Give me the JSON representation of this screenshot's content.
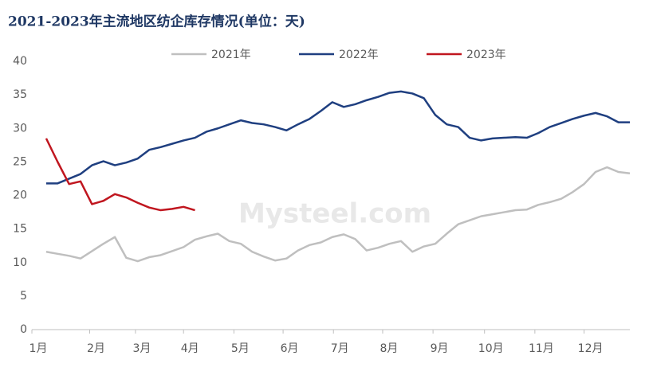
{
  "chart_data": {
    "type": "line",
    "title": "2021-2023年主流地区纺企库存情况(单位：天)",
    "watermark": "Mysteel.com",
    "x": [
      1,
      2,
      3,
      4,
      5,
      6,
      7,
      8,
      9,
      10,
      11,
      12,
      13,
      14,
      15,
      16,
      17,
      18,
      19,
      20,
      21,
      22,
      23,
      24,
      25,
      26,
      27,
      28,
      29,
      30,
      31,
      32,
      33,
      34,
      35,
      36,
      37,
      38,
      39,
      40,
      41,
      42,
      43,
      44,
      45,
      46,
      47,
      48,
      49,
      50,
      51,
      52
    ],
    "xlim": [
      -0.25,
      52
    ],
    "xticks": [
      {
        "value": -0.25,
        "label": "1月"
      },
      {
        "value": 4.8,
        "label": "2月"
      },
      {
        "value": 8.8,
        "label": "3月"
      },
      {
        "value": 13,
        "label": "4月"
      },
      {
        "value": 17.4,
        "label": "5月"
      },
      {
        "value": 21.7,
        "label": "6月"
      },
      {
        "value": 26.1,
        "label": "7月"
      },
      {
        "value": 30.4,
        "label": "8月"
      },
      {
        "value": 34.8,
        "label": "9月"
      },
      {
        "value": 39.3,
        "label": "10月"
      },
      {
        "value": 43.7,
        "label": "11月"
      },
      {
        "value": 48,
        "label": "12月"
      }
    ],
    "ylim": [
      0,
      40
    ],
    "yticks": [
      0,
      5,
      10,
      15,
      20,
      25,
      30,
      35,
      40
    ],
    "grid": false,
    "legend": "top",
    "series": [
      {
        "name": "2021年",
        "color": "#bfbfbf",
        "values": [
          11.6,
          11.3,
          11.0,
          10.6,
          11.7,
          12.8,
          13.8,
          10.7,
          10.2,
          10.8,
          11.1,
          11.7,
          12.3,
          13.4,
          13.9,
          14.3,
          13.2,
          12.8,
          11.6,
          10.9,
          10.3,
          10.6,
          11.8,
          12.6,
          13.0,
          13.8,
          14.2,
          13.5,
          11.8,
          12.2,
          12.8,
          13.2,
          11.6,
          12.4,
          12.8,
          14.3,
          15.7,
          16.3,
          16.9,
          17.2,
          17.5,
          17.8,
          17.9,
          18.6,
          19.0,
          19.5,
          20.5,
          21.7,
          23.5,
          24.2,
          23.5,
          23.3
        ]
      },
      {
        "name": "2022年",
        "color": "#1f3f80",
        "values": [
          21.8,
          21.8,
          22.5,
          23.2,
          24.5,
          25.1,
          24.5,
          24.9,
          25.5,
          26.8,
          27.2,
          27.7,
          28.2,
          28.6,
          29.5,
          30.0,
          30.6,
          31.2,
          30.8,
          30.6,
          30.2,
          29.7,
          30.6,
          31.4,
          32.6,
          33.9,
          33.2,
          33.6,
          34.2,
          34.7,
          35.3,
          35.5,
          35.2,
          34.5,
          32.0,
          30.6,
          30.2,
          28.6,
          28.2,
          28.5,
          28.6,
          28.7,
          28.6,
          29.3,
          30.2,
          30.8,
          31.4,
          31.9,
          32.3,
          31.8,
          30.9,
          30.9
        ]
      },
      {
        "name": "2023年",
        "color": "#c0161f",
        "values": [
          28.5,
          25.0,
          21.7,
          22.1,
          18.7,
          19.2,
          20.2,
          19.7,
          18.9,
          18.2,
          17.8,
          18.0,
          18.3,
          17.8,
          null,
          null,
          null,
          null,
          null,
          null,
          null,
          null,
          null,
          null,
          null,
          null,
          null,
          null,
          null,
          null,
          null,
          null,
          null,
          null,
          null,
          null,
          null,
          null,
          null,
          null,
          null,
          null,
          null,
          null,
          null,
          null,
          null,
          null,
          null,
          null,
          null,
          null
        ]
      }
    ]
  }
}
